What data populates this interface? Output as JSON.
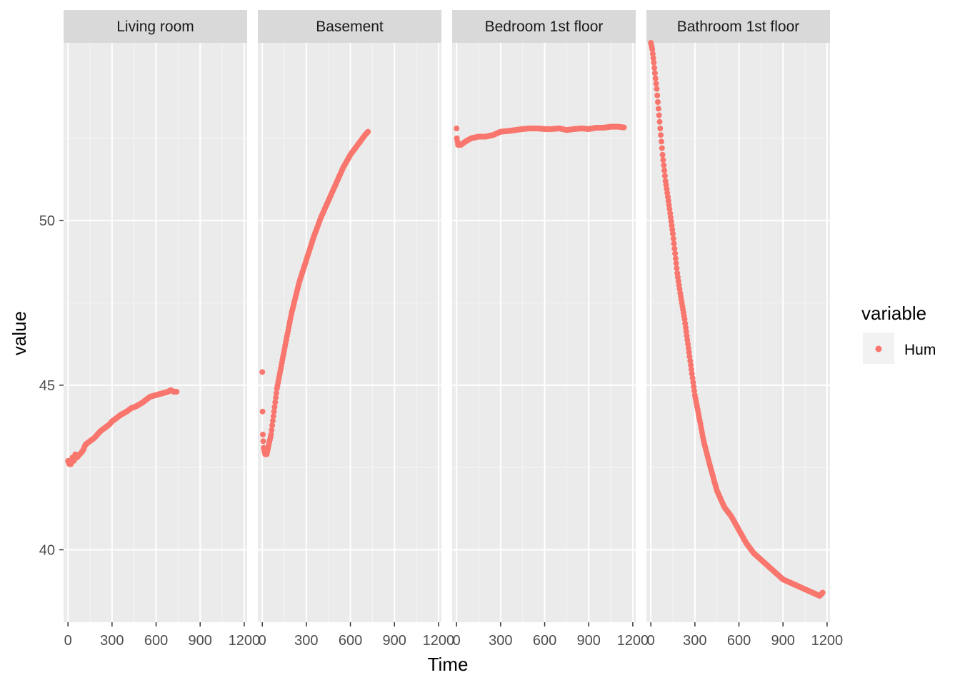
{
  "chart_data": {
    "type": "scatter",
    "xlabel": "Time",
    "ylabel": "value",
    "xlim": [
      -30,
      1220
    ],
    "ylim": [
      37.8,
      55.4
    ],
    "x_ticks": [
      0,
      300,
      600,
      900,
      1200
    ],
    "x_tick_labels": [
      "0",
      "300",
      "600",
      "900",
      "1200"
    ],
    "y_ticks": [
      40,
      45,
      50
    ],
    "y_tick_labels": [
      "40",
      "45",
      "50"
    ],
    "grid": true,
    "legend": {
      "title": "variable",
      "position": "right",
      "entries": [
        "Hum"
      ]
    },
    "colors": {
      "Hum": "#F8766D",
      "panel_bg": "#EBEBEB",
      "strip_bg": "#D9D9D9",
      "grid": "#FFFFFF"
    },
    "facets": [
      {
        "label": "Living room",
        "series": [
          {
            "name": "Hum",
            "points": [
              [
                0,
                42.7
              ],
              [
                10,
                42.6
              ],
              [
                20,
                42.6
              ],
              [
                30,
                42.8
              ],
              [
                40,
                42.7
              ],
              [
                50,
                42.9
              ],
              [
                60,
                42.8
              ],
              [
                80,
                42.9
              ],
              [
                100,
                43.0
              ],
              [
                120,
                43.2
              ],
              [
                150,
                43.3
              ],
              [
                180,
                43.4
              ],
              [
                200,
                43.5
              ],
              [
                220,
                43.6
              ],
              [
                250,
                43.7
              ],
              [
                280,
                43.8
              ],
              [
                300,
                43.9
              ],
              [
                330,
                44.0
              ],
              [
                360,
                44.1
              ],
              [
                400,
                44.2
              ],
              [
                430,
                44.3
              ],
              [
                460,
                44.35
              ],
              [
                500,
                44.45
              ],
              [
                530,
                44.55
              ],
              [
                560,
                44.65
              ],
              [
                600,
                44.7
              ],
              [
                640,
                44.75
              ],
              [
                680,
                44.8
              ],
              [
                700,
                44.85
              ],
              [
                720,
                44.8
              ],
              [
                740,
                44.8
              ]
            ]
          }
        ]
      },
      {
        "label": "Basement",
        "series": [
          {
            "name": "Hum",
            "points": [
              [
                0,
                45.4
              ],
              [
                2,
                44.2
              ],
              [
                4,
                43.5
              ],
              [
                10,
                43.1
              ],
              [
                20,
                42.9
              ],
              [
                30,
                42.9
              ],
              [
                40,
                43.1
              ],
              [
                60,
                43.5
              ],
              [
                80,
                44.2
              ],
              [
                100,
                44.9
              ],
              [
                130,
                45.6
              ],
              [
                160,
                46.3
              ],
              [
                200,
                47.2
              ],
              [
                250,
                48.1
              ],
              [
                300,
                48.8
              ],
              [
                350,
                49.5
              ],
              [
                400,
                50.1
              ],
              [
                450,
                50.6
              ],
              [
                500,
                51.1
              ],
              [
                550,
                51.6
              ],
              [
                600,
                52.0
              ],
              [
                650,
                52.3
              ],
              [
                700,
                52.6
              ],
              [
                720,
                52.7
              ]
            ]
          }
        ]
      },
      {
        "label": "Bedroom 1st floor",
        "series": [
          {
            "name": "Hum",
            "points": [
              [
                0,
                52.8
              ],
              [
                2,
                52.5
              ],
              [
                10,
                52.3
              ],
              [
                30,
                52.3
              ],
              [
                60,
                52.4
              ],
              [
                100,
                52.5
              ],
              [
                150,
                52.55
              ],
              [
                200,
                52.55
              ],
              [
                250,
                52.6
              ],
              [
                300,
                52.7
              ],
              [
                350,
                52.72
              ],
              [
                400,
                52.75
              ],
              [
                450,
                52.78
              ],
              [
                500,
                52.8
              ],
              [
                550,
                52.8
              ],
              [
                600,
                52.78
              ],
              [
                650,
                52.78
              ],
              [
                700,
                52.8
              ],
              [
                750,
                52.75
              ],
              [
                800,
                52.78
              ],
              [
                850,
                52.8
              ],
              [
                900,
                52.78
              ],
              [
                950,
                52.82
              ],
              [
                1000,
                52.82
              ],
              [
                1050,
                52.85
              ],
              [
                1100,
                52.85
              ],
              [
                1140,
                52.83
              ]
            ]
          }
        ]
      },
      {
        "label": "Bathroom 1st floor",
        "series": [
          {
            "name": "Hum",
            "points": [
              [
                0,
                55.4
              ],
              [
                10,
                55.2
              ],
              [
                20,
                54.8
              ],
              [
                40,
                54.0
              ],
              [
                60,
                53.0
              ],
              [
                80,
                52.0
              ],
              [
                100,
                51.2
              ],
              [
                120,
                50.6
              ],
              [
                150,
                49.6
              ],
              [
                180,
                48.4
              ],
              [
                200,
                47.8
              ],
              [
                230,
                47.0
              ],
              [
                260,
                46.0
              ],
              [
                300,
                44.7
              ],
              [
                330,
                44.0
              ],
              [
                360,
                43.3
              ],
              [
                400,
                42.6
              ],
              [
                450,
                41.8
              ],
              [
                500,
                41.3
              ],
              [
                550,
                41.0
              ],
              [
                600,
                40.6
              ],
              [
                650,
                40.2
              ],
              [
                700,
                39.9
              ],
              [
                750,
                39.7
              ],
              [
                800,
                39.5
              ],
              [
                850,
                39.3
              ],
              [
                900,
                39.1
              ],
              [
                950,
                39.0
              ],
              [
                1000,
                38.9
              ],
              [
                1050,
                38.8
              ],
              [
                1100,
                38.7
              ],
              [
                1150,
                38.6
              ],
              [
                1170,
                38.7
              ]
            ]
          }
        ]
      }
    ]
  }
}
